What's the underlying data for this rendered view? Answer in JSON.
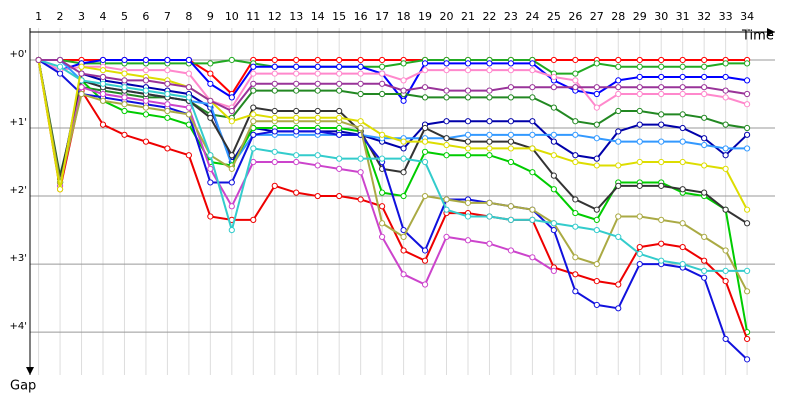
{
  "chart_data": {
    "type": "line",
    "x_label": "Time",
    "y_label": "Gap",
    "x": [
      1,
      2,
      3,
      4,
      5,
      6,
      7,
      8,
      9,
      10,
      11,
      12,
      13,
      14,
      15,
      16,
      17,
      18,
      19,
      20,
      21,
      22,
      23,
      24,
      25,
      26,
      27,
      28,
      29,
      30,
      31,
      32,
      33,
      34
    ],
    "xlim": [
      0.6,
      35.3
    ],
    "ylim": [
      -0.47,
      4.63
    ],
    "y_inverted": true,
    "grid": true,
    "yticks": [
      {
        "value": 0,
        "label": "+0'"
      },
      {
        "value": 1,
        "label": "+1'"
      },
      {
        "value": 2,
        "label": "+2'"
      },
      {
        "value": 3,
        "label": "+3'"
      },
      {
        "value": 4,
        "label": "+4'"
      }
    ],
    "series": [
      {
        "color": "#ff0000",
        "values": [
          0,
          0,
          0,
          0,
          0,
          0,
          0,
          0,
          0.2,
          0.5,
          0,
          0,
          0,
          0,
          0,
          0,
          0,
          0,
          0,
          0,
          0,
          0,
          0,
          0,
          0,
          0,
          0,
          0,
          0,
          0,
          0,
          0,
          0,
          0
        ]
      },
      {
        "color": "#22aa22",
        "values": [
          0,
          0,
          0.05,
          0.05,
          0.05,
          0.05,
          0.05,
          0.05,
          0.05,
          0,
          0.05,
          0.1,
          0.1,
          0.1,
          0.1,
          0.1,
          0.1,
          0.05,
          0,
          0,
          0,
          0,
          0,
          0,
          0.2,
          0.2,
          0.05,
          0.1,
          0.1,
          0.1,
          0.1,
          0.1,
          0.05,
          0.05
        ]
      },
      {
        "color": "#0000ff",
        "values": [
          0,
          0.15,
          0.05,
          0,
          0,
          0,
          0,
          0,
          0.35,
          0.55,
          0.1,
          0.1,
          0.1,
          0.1,
          0.1,
          0.1,
          0.2,
          0.6,
          0.05,
          0.05,
          0.05,
          0.05,
          0.05,
          0.05,
          0.3,
          0.45,
          0.5,
          0.3,
          0.25,
          0.25,
          0.25,
          0.25,
          0.25,
          0.3
        ]
      },
      {
        "color": "#ff88cc",
        "values": [
          0,
          0.15,
          0.1,
          0.1,
          0.15,
          0.15,
          0.15,
          0.2,
          0.6,
          0.7,
          0.2,
          0.2,
          0.2,
          0.2,
          0.2,
          0.2,
          0.2,
          0.3,
          0.15,
          0.15,
          0.15,
          0.15,
          0.15,
          0.15,
          0.25,
          0.3,
          0.7,
          0.5,
          0.5,
          0.5,
          0.5,
          0.5,
          0.55,
          0.65
        ]
      },
      {
        "color": "#228822",
        "values": [
          0,
          1.7,
          0.4,
          0.45,
          0.5,
          0.55,
          0.55,
          0.6,
          0.8,
          0.85,
          0.45,
          0.45,
          0.45,
          0.45,
          0.45,
          0.5,
          0.5,
          0.5,
          0.55,
          0.55,
          0.55,
          0.55,
          0.55,
          0.55,
          0.7,
          0.9,
          0.95,
          0.75,
          0.75,
          0.8,
          0.8,
          0.85,
          0.95,
          1.0
        ]
      },
      {
        "color": "#0000aa",
        "values": [
          0,
          1.8,
          0.2,
          0.3,
          0.35,
          0.4,
          0.45,
          0.5,
          0.7,
          1.5,
          1.0,
          1.05,
          1.05,
          1.05,
          1.05,
          1.1,
          1.2,
          1.3,
          0.95,
          0.9,
          0.9,
          0.9,
          0.9,
          0.9,
          1.2,
          1.4,
          1.45,
          1.05,
          0.95,
          0.95,
          1.0,
          1.15,
          1.4,
          1.1
        ]
      },
      {
        "color": "#3399ff",
        "values": [
          0,
          0,
          0.3,
          0.4,
          0.45,
          0.5,
          0.55,
          0.6,
          0.65,
          1.55,
          1.1,
          1.1,
          1.1,
          1.1,
          1.1,
          1.1,
          1.15,
          1.15,
          1.15,
          1.15,
          1.1,
          1.1,
          1.1,
          1.1,
          1.1,
          1.1,
          1.15,
          1.2,
          1.2,
          1.2,
          1.2,
          1.25,
          1.3,
          1.3
        ]
      },
      {
        "color": "#00cc00",
        "values": [
          0,
          1.8,
          0.3,
          0.6,
          0.75,
          0.8,
          0.85,
          0.95,
          1.5,
          1.55,
          1.0,
          1.0,
          1.0,
          1.0,
          1.0,
          1.05,
          1.95,
          2.0,
          1.35,
          1.4,
          1.4,
          1.4,
          1.5,
          1.65,
          1.9,
          2.25,
          2.35,
          1.8,
          1.8,
          1.8,
          1.95,
          2.0,
          2.2,
          4.0
        ]
      },
      {
        "color": "#333333",
        "values": [
          0,
          1.75,
          0.3,
          0.4,
          0.45,
          0.5,
          0.55,
          0.6,
          0.85,
          1.4,
          0.7,
          0.75,
          0.75,
          0.75,
          0.75,
          1.05,
          1.6,
          1.65,
          1.0,
          1.15,
          1.2,
          1.2,
          1.2,
          1.3,
          1.7,
          2.05,
          2.2,
          1.85,
          1.85,
          1.85,
          1.9,
          1.95,
          2.2,
          2.4
        ]
      },
      {
        "color": "#ee0000",
        "values": [
          0,
          1.9,
          0.45,
          0.95,
          1.1,
          1.2,
          1.3,
          1.4,
          2.3,
          2.35,
          2.35,
          1.85,
          1.95,
          2.0,
          2.0,
          2.05,
          2.15,
          2.8,
          2.95,
          2.25,
          2.25,
          2.3,
          2.35,
          2.35,
          3.05,
          3.15,
          3.25,
          3.3,
          2.75,
          2.7,
          2.75,
          2.95,
          3.25,
          4.1
        ]
      },
      {
        "color": "#1111dd",
        "values": [
          0,
          0.2,
          0.5,
          0.55,
          0.6,
          0.65,
          0.7,
          0.8,
          1.8,
          1.8,
          1.1,
          1.05,
          1.05,
          1.05,
          1.1,
          1.1,
          1.5,
          2.5,
          2.8,
          2.05,
          2.05,
          2.1,
          2.15,
          2.2,
          2.5,
          3.4,
          3.6,
          3.65,
          3.0,
          3.0,
          3.05,
          3.2,
          4.1,
          4.4
        ]
      },
      {
        "color": "#cc44cc",
        "values": [
          0,
          1.85,
          0.4,
          0.5,
          0.55,
          0.6,
          0.65,
          0.7,
          1.6,
          2.15,
          1.5,
          1.5,
          1.5,
          1.55,
          1.6,
          1.65,
          2.6,
          3.15,
          3.3,
          2.6,
          2.65,
          2.7,
          2.8,
          2.9,
          3.1,
          null,
          null,
          null,
          null,
          null,
          null,
          null,
          null,
          null
        ]
      },
      {
        "color": "#aaaa44",
        "values": [
          0,
          1.8,
          0.5,
          0.6,
          0.65,
          0.7,
          0.75,
          0.8,
          1.4,
          1.6,
          0.9,
          0.9,
          0.9,
          0.9,
          0.9,
          1.0,
          2.4,
          2.6,
          2.0,
          2.05,
          2.1,
          2.1,
          2.15,
          2.2,
          2.4,
          2.9,
          3.0,
          2.3,
          2.3,
          2.35,
          2.4,
          2.6,
          2.8,
          3.4
        ]
      },
      {
        "color": "#33cccc",
        "values": [
          0,
          0.1,
          0.3,
          0.35,
          0.4,
          0.45,
          0.5,
          0.55,
          1.4,
          2.5,
          1.3,
          1.35,
          1.4,
          1.4,
          1.45,
          1.45,
          1.45,
          1.45,
          1.5,
          2.2,
          2.3,
          2.3,
          2.35,
          2.35,
          2.4,
          2.45,
          2.5,
          2.6,
          2.85,
          2.95,
          3.0,
          3.1,
          3.1,
          3.1
        ]
      },
      {
        "color": "#dddd00",
        "values": [
          0,
          1.9,
          0.1,
          0.15,
          0.2,
          0.25,
          0.3,
          0.4,
          0.6,
          0.9,
          0.8,
          0.85,
          0.85,
          0.85,
          0.85,
          0.9,
          1.1,
          1.2,
          1.2,
          1.25,
          1.3,
          1.3,
          1.3,
          1.3,
          1.4,
          1.5,
          1.55,
          1.55,
          1.5,
          1.5,
          1.5,
          1.55,
          1.6,
          2.2
        ]
      },
      {
        "color": "#993399",
        "values": [
          0,
          0,
          0.2,
          0.25,
          0.3,
          0.3,
          0.35,
          0.4,
          0.6,
          0.75,
          0.35,
          0.35,
          0.35,
          0.35,
          0.35,
          0.35,
          0.35,
          0.45,
          0.4,
          0.45,
          0.45,
          0.45,
          0.4,
          0.4,
          0.4,
          0.4,
          0.4,
          0.4,
          0.4,
          0.4,
          0.4,
          0.4,
          0.45,
          0.5
        ]
      }
    ]
  }
}
